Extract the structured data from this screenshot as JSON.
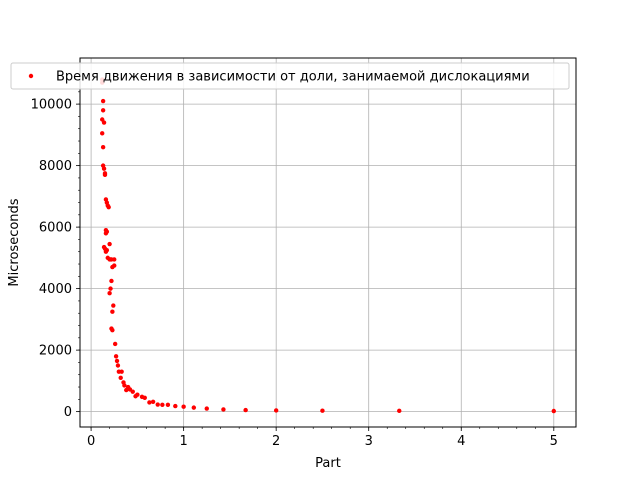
{
  "chart_data": {
    "type": "scatter",
    "xlabel": "Part",
    "ylabel": "Microseconds",
    "xlim": [
      -0.12,
      5.24
    ],
    "ylim": [
      -500,
      11500
    ],
    "xticks": [
      0,
      1,
      2,
      3,
      4,
      5
    ],
    "xtick_labels": [
      "0",
      "1",
      "2",
      "3",
      "4",
      "5"
    ],
    "yticks": [
      0,
      2000,
      4000,
      6000,
      8000,
      10000
    ],
    "ytick_labels": [
      "0",
      "2000",
      "4000",
      "6000",
      "8000",
      "10000"
    ],
    "grid": true,
    "legend": {
      "position": "top",
      "entries": [
        "Время движения в зависимости от доли, занимаемой дислокациями"
      ]
    },
    "series": [
      {
        "name": "Время движения в зависимости от доли, занимаемой дислокациями",
        "color": "#ff0000",
        "points": [
          [
            0.12,
            10800
          ],
          [
            0.12,
            10700
          ],
          [
            0.13,
            10100
          ],
          [
            0.13,
            9800
          ],
          [
            0.12,
            9500
          ],
          [
            0.14,
            9400
          ],
          [
            0.12,
            9050
          ],
          [
            0.13,
            8600
          ],
          [
            0.13,
            8000
          ],
          [
            0.14,
            7900
          ],
          [
            0.15,
            7750
          ],
          [
            0.15,
            7700
          ],
          [
            0.16,
            6900
          ],
          [
            0.17,
            6800
          ],
          [
            0.18,
            6700
          ],
          [
            0.19,
            6650
          ],
          [
            0.16,
            5900
          ],
          [
            0.17,
            5850
          ],
          [
            0.16,
            5800
          ],
          [
            0.14,
            5350
          ],
          [
            0.15,
            5300
          ],
          [
            0.17,
            5250
          ],
          [
            0.2,
            5450
          ],
          [
            0.16,
            5200
          ],
          [
            0.18,
            5000
          ],
          [
            0.2,
            4950
          ],
          [
            0.21,
            4950
          ],
          [
            0.22,
            4950
          ],
          [
            0.25,
            4950
          ],
          [
            0.25,
            4750
          ],
          [
            0.23,
            4700
          ],
          [
            0.22,
            4250
          ],
          [
            0.21,
            4000
          ],
          [
            0.2,
            3850
          ],
          [
            0.24,
            3450
          ],
          [
            0.23,
            3250
          ],
          [
            0.22,
            2700
          ],
          [
            0.23,
            2650
          ],
          [
            0.26,
            2200
          ],
          [
            0.27,
            1800
          ],
          [
            0.28,
            1650
          ],
          [
            0.29,
            1500
          ],
          [
            0.3,
            1300
          ],
          [
            0.33,
            1300
          ],
          [
            0.32,
            1100
          ],
          [
            0.35,
            950
          ],
          [
            0.36,
            850
          ],
          [
            0.4,
            800
          ],
          [
            0.38,
            700
          ],
          [
            0.42,
            720
          ],
          [
            0.45,
            650
          ],
          [
            0.5,
            550
          ],
          [
            0.48,
            500
          ],
          [
            0.55,
            480
          ],
          [
            0.58,
            450
          ],
          [
            0.63,
            300
          ],
          [
            0.67,
            320
          ],
          [
            0.72,
            230
          ],
          [
            0.77,
            220
          ],
          [
            0.83,
            220
          ],
          [
            0.91,
            180
          ],
          [
            1.0,
            160
          ],
          [
            1.11,
            130
          ],
          [
            1.25,
            100
          ],
          [
            1.43,
            70
          ],
          [
            1.67,
            50
          ],
          [
            2.0,
            40
          ],
          [
            2.5,
            30
          ],
          [
            3.33,
            25
          ],
          [
            5.0,
            20
          ]
        ]
      }
    ]
  }
}
